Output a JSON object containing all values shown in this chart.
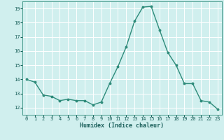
{
  "x": [
    0,
    1,
    2,
    3,
    4,
    5,
    6,
    7,
    8,
    9,
    10,
    11,
    12,
    13,
    14,
    15,
    16,
    17,
    18,
    19,
    20,
    21,
    22,
    23
  ],
  "y": [
    14.0,
    13.8,
    12.9,
    12.8,
    12.5,
    12.6,
    12.5,
    12.5,
    12.2,
    12.4,
    13.7,
    14.9,
    16.3,
    18.1,
    19.1,
    19.15,
    17.5,
    15.9,
    15.0,
    13.7,
    13.7,
    12.5,
    12.4,
    11.9
  ],
  "line_color": "#2e8b7a",
  "marker": "o",
  "marker_size": 1.8,
  "line_width": 1.0,
  "xlabel": "Humidex (Indice chaleur)",
  "xlabel_fontsize": 6.0,
  "xlabel_color": "#1a5f5a",
  "xlabel_fontweight": "bold",
  "ylim": [
    11.5,
    19.5
  ],
  "xlim": [
    -0.5,
    23.5
  ],
  "yticks": [
    12,
    13,
    14,
    15,
    16,
    17,
    18,
    19
  ],
  "xticks": [
    0,
    1,
    2,
    3,
    4,
    5,
    6,
    7,
    8,
    9,
    10,
    11,
    12,
    13,
    14,
    15,
    16,
    17,
    18,
    19,
    20,
    21,
    22,
    23
  ],
  "tick_fontsize": 5.0,
  "tick_color": "#1a5f5a",
  "bg_color": "#d0efee",
  "grid_color": "#ffffff",
  "grid_lw": 0.7,
  "spine_color": "#2e8b7a"
}
